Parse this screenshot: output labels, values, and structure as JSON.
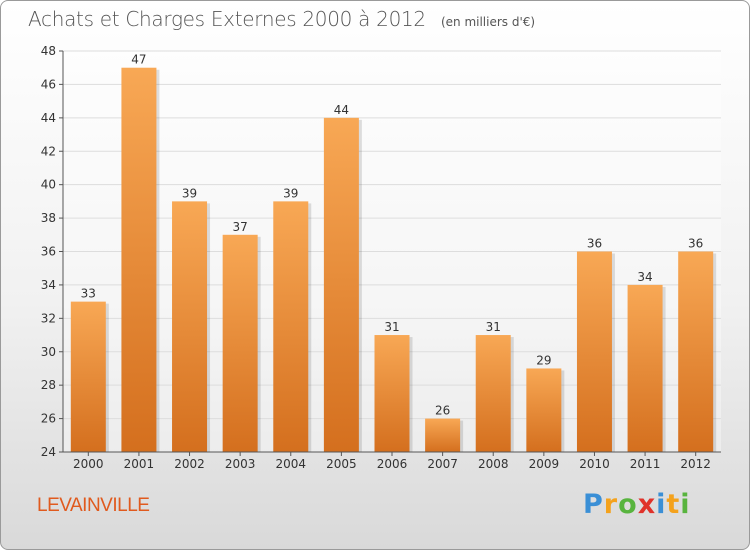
{
  "title": "Achats et Charges Externes 2000 à 2012",
  "unit_note": "(en milliers d'€)",
  "location": "LEVAINVILLE",
  "brand": {
    "letters": [
      {
        "ch": "P",
        "color": "#3a8fd6"
      },
      {
        "ch": "r",
        "color": "#f4a21c"
      },
      {
        "ch": "o",
        "color": "#58b43e"
      },
      {
        "ch": "x",
        "color": "#e0322a"
      },
      {
        "ch": "i",
        "color": "#3a8fd6"
      },
      {
        "ch": "t",
        "color": "#f4a21c"
      },
      {
        "ch": "i",
        "color": "#58b43e"
      }
    ]
  },
  "colors": {
    "bar_light": "#f8a855",
    "bar_dark": "#d46f1e",
    "axis": "#555555",
    "grid": "#dddddd"
  },
  "chart_data": {
    "type": "bar",
    "categories": [
      "2000",
      "2001",
      "2002",
      "2003",
      "2004",
      "2005",
      "2006",
      "2007",
      "2008",
      "2009",
      "2010",
      "2011",
      "2012"
    ],
    "values": [
      33,
      47,
      39,
      37,
      39,
      44,
      31,
      26,
      31,
      29,
      36,
      34,
      36
    ],
    "ylim": [
      24,
      48
    ],
    "yticks": [
      24,
      26,
      28,
      30,
      32,
      34,
      36,
      38,
      40,
      42,
      44,
      46,
      48
    ],
    "grid": true
  }
}
